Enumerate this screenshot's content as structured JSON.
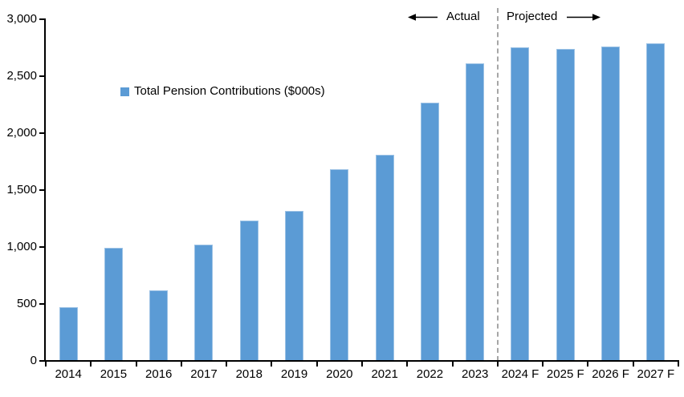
{
  "chart_data": {
    "type": "bar",
    "title": "",
    "series_name": "Total Pension Contributions ($000s)",
    "categories": [
      "2014",
      "2015",
      "2016",
      "2017",
      "2018",
      "2019",
      "2020",
      "2021",
      "2022",
      "2023",
      "2024 F",
      "2025 F",
      "2026 F",
      "2027 F"
    ],
    "values": [
      470,
      990,
      620,
      1020,
      1230,
      1320,
      1680,
      1810,
      2270,
      2610,
      2750,
      2740,
      2760,
      2790
    ],
    "xlabel": "",
    "ylabel": "",
    "ylim": [
      0,
      3000
    ],
    "ytick_step": 500,
    "ytick_labels": [
      "0",
      "500",
      "1,000",
      "1,500",
      "2,000",
      "2,500",
      "3,000"
    ],
    "grid": false,
    "legend_position": "inside-top-left",
    "annotations": {
      "actual_label": "Actual",
      "projected_label": "Projected",
      "divider_after_category": "2023"
    },
    "colors": {
      "bar_fill": "#5B9BD5",
      "bar_border": "#9CC2E5",
      "divider": "#A6A6A6",
      "axis": "#000000",
      "text": "#000000"
    }
  }
}
